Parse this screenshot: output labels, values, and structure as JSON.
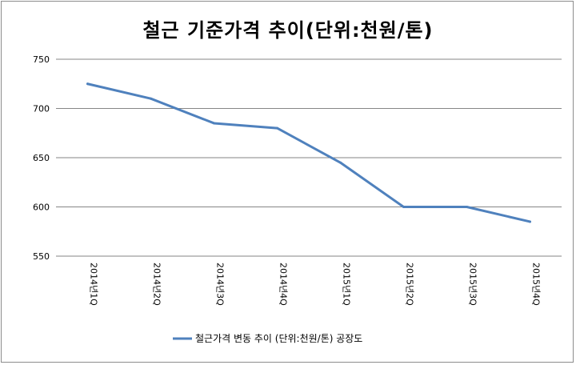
{
  "chart_data": {
    "type": "line",
    "title": "철근 기준가격 추이(단위:천원/톤)",
    "categories": [
      "2014년1Q",
      "2014년2Q",
      "2014년3Q",
      "2014년4Q",
      "2015년1Q",
      "2015년2Q",
      "2015년3Q",
      "2015년4Q"
    ],
    "series": [
      {
        "name": "철근가격 변동 추이 (단위:천원/톤) 공장도",
        "values": [
          725,
          710,
          685,
          680,
          645,
          600,
          600,
          585
        ],
        "color": "#4f81bd"
      }
    ],
    "yticks": [
      550,
      600,
      650,
      700,
      750
    ],
    "ylim": [
      550,
      750
    ],
    "grid": true,
    "legend": "bottom"
  }
}
